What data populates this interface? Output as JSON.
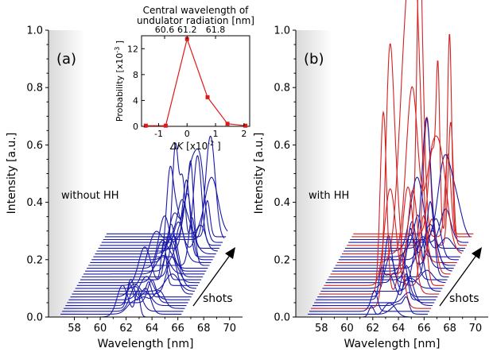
{
  "chart_data": [
    {
      "id": "a",
      "panel_label": "(a)",
      "type": "line",
      "annotation": "without HH",
      "shots_label": "shots",
      "xlabel": "Wavelength [nm]",
      "ylabel": "Intensity [a.u.]",
      "xlim": [
        56,
        71
      ],
      "ylim": [
        0,
        1.0
      ],
      "xticks": [
        "58",
        "60",
        "62",
        "64",
        "66",
        "68",
        "70"
      ],
      "yticks": [
        "0.0",
        "0.2",
        "0.4",
        "0.6",
        "0.8",
        "1.0"
      ],
      "waterfall": {
        "shots": 30,
        "line_color": "#1a1aa8",
        "flat_region_nm": [
          60,
          67
        ],
        "offset_step_y": 0.01,
        "offset_step_nm": 0.127
      },
      "series": [
        {
          "x": [
            60.3,
            60.7,
            61.1,
            61.5,
            61.8,
            62.0,
            62.2,
            62.5,
            62.8,
            63.1,
            63.4,
            63.7,
            64.0,
            64.3,
            64.6,
            64.9,
            65.2,
            65.5,
            65.8
          ],
          "y": [
            0,
            0.01,
            0.03,
            0.06,
            0.1,
            0.14,
            0.12,
            0.16,
            0.18,
            0.21,
            0.24,
            0.27,
            0.3,
            0.33,
            0.4,
            0.48,
            0.55,
            0.45,
            0.2
          ]
        }
      ]
    },
    {
      "id": "b",
      "panel_label": "(b)",
      "type": "line",
      "annotation": "with HH",
      "shots_label": "shots",
      "xlabel": "Wavelength [nm]",
      "ylabel": "Intensity [a.u.]",
      "xlim": [
        56,
        71
      ],
      "ylim": [
        0,
        1.0
      ],
      "xticks": [
        "58",
        "60",
        "62",
        "64",
        "66",
        "68",
        "70"
      ],
      "yticks": [
        "0.0",
        "0.2",
        "0.4",
        "0.6",
        "0.8",
        "1.0"
      ],
      "waterfall": {
        "shots": 30,
        "line_color": "#1a1aa8",
        "highlight_color": "#d42020",
        "highlight_shots": [
          3,
          8,
          11,
          15,
          19,
          22,
          25,
          28,
          29
        ],
        "offset_step_y": 0.01,
        "offset_step_nm": 0.127
      },
      "series": [
        {
          "x": [
            62.1,
            63.5,
            64.4,
            65.0
          ],
          "y": [
            0.83,
            0.87,
            1.0,
            0.73
          ]
        }
      ]
    },
    {
      "id": "inset",
      "type": "line",
      "title": "Central wavelength of undulator radiation [nm]",
      "title_line1": "Central wavelength of",
      "title_line2": "undulator radiation [nm]",
      "xlabel_italic": "ΔK",
      "xlabel_rest": " [x10",
      "xlabel_exp": "-2",
      "xlabel_close": " ]",
      "ylabel_main": "Probability [x10",
      "ylabel_exp": "-3",
      "ylabel_close": " ]",
      "xlim": [
        -1.6,
        2.2
      ],
      "ylim": [
        0,
        14
      ],
      "xticks": [
        "-1",
        "0",
        "1",
        "2"
      ],
      "yticks": [
        "0",
        "4",
        "8",
        "12"
      ],
      "top_xticks": [
        "60.6",
        "61.2",
        "61.8"
      ],
      "top_xticks_pos": [
        -0.79,
        0,
        1.0
      ],
      "color": "#e01818",
      "x": [
        -1.45,
        -0.75,
        0,
        0.72,
        1.42,
        2.05
      ],
      "y": [
        0.1,
        0.1,
        13.5,
        4.5,
        0.4,
        0.1
      ]
    }
  ]
}
